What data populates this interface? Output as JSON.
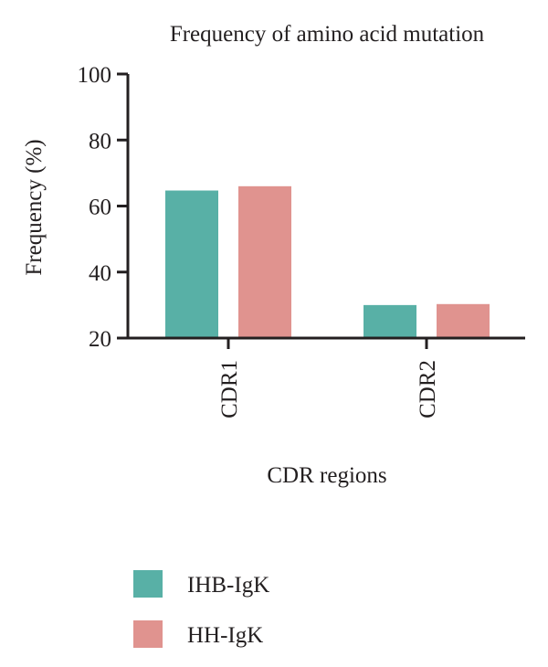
{
  "chart_data": {
    "type": "bar",
    "title": "Frequency of amino acid mutation",
    "xlabel": "CDR regions",
    "ylabel": "Frequency (%)",
    "categories": [
      "CDR1",
      "CDR2"
    ],
    "series": [
      {
        "name": "IHB-IgK",
        "values": [
          64.7,
          30.0
        ],
        "color": "#58b0a6"
      },
      {
        "name": "HH-IgK",
        "values": [
          66.0,
          30.3
        ],
        "color": "#e0938f"
      }
    ],
    "ylim": [
      20,
      100
    ],
    "yticks": [
      20,
      40,
      60,
      80,
      100
    ],
    "grid": false,
    "legend": "bottom-left"
  }
}
